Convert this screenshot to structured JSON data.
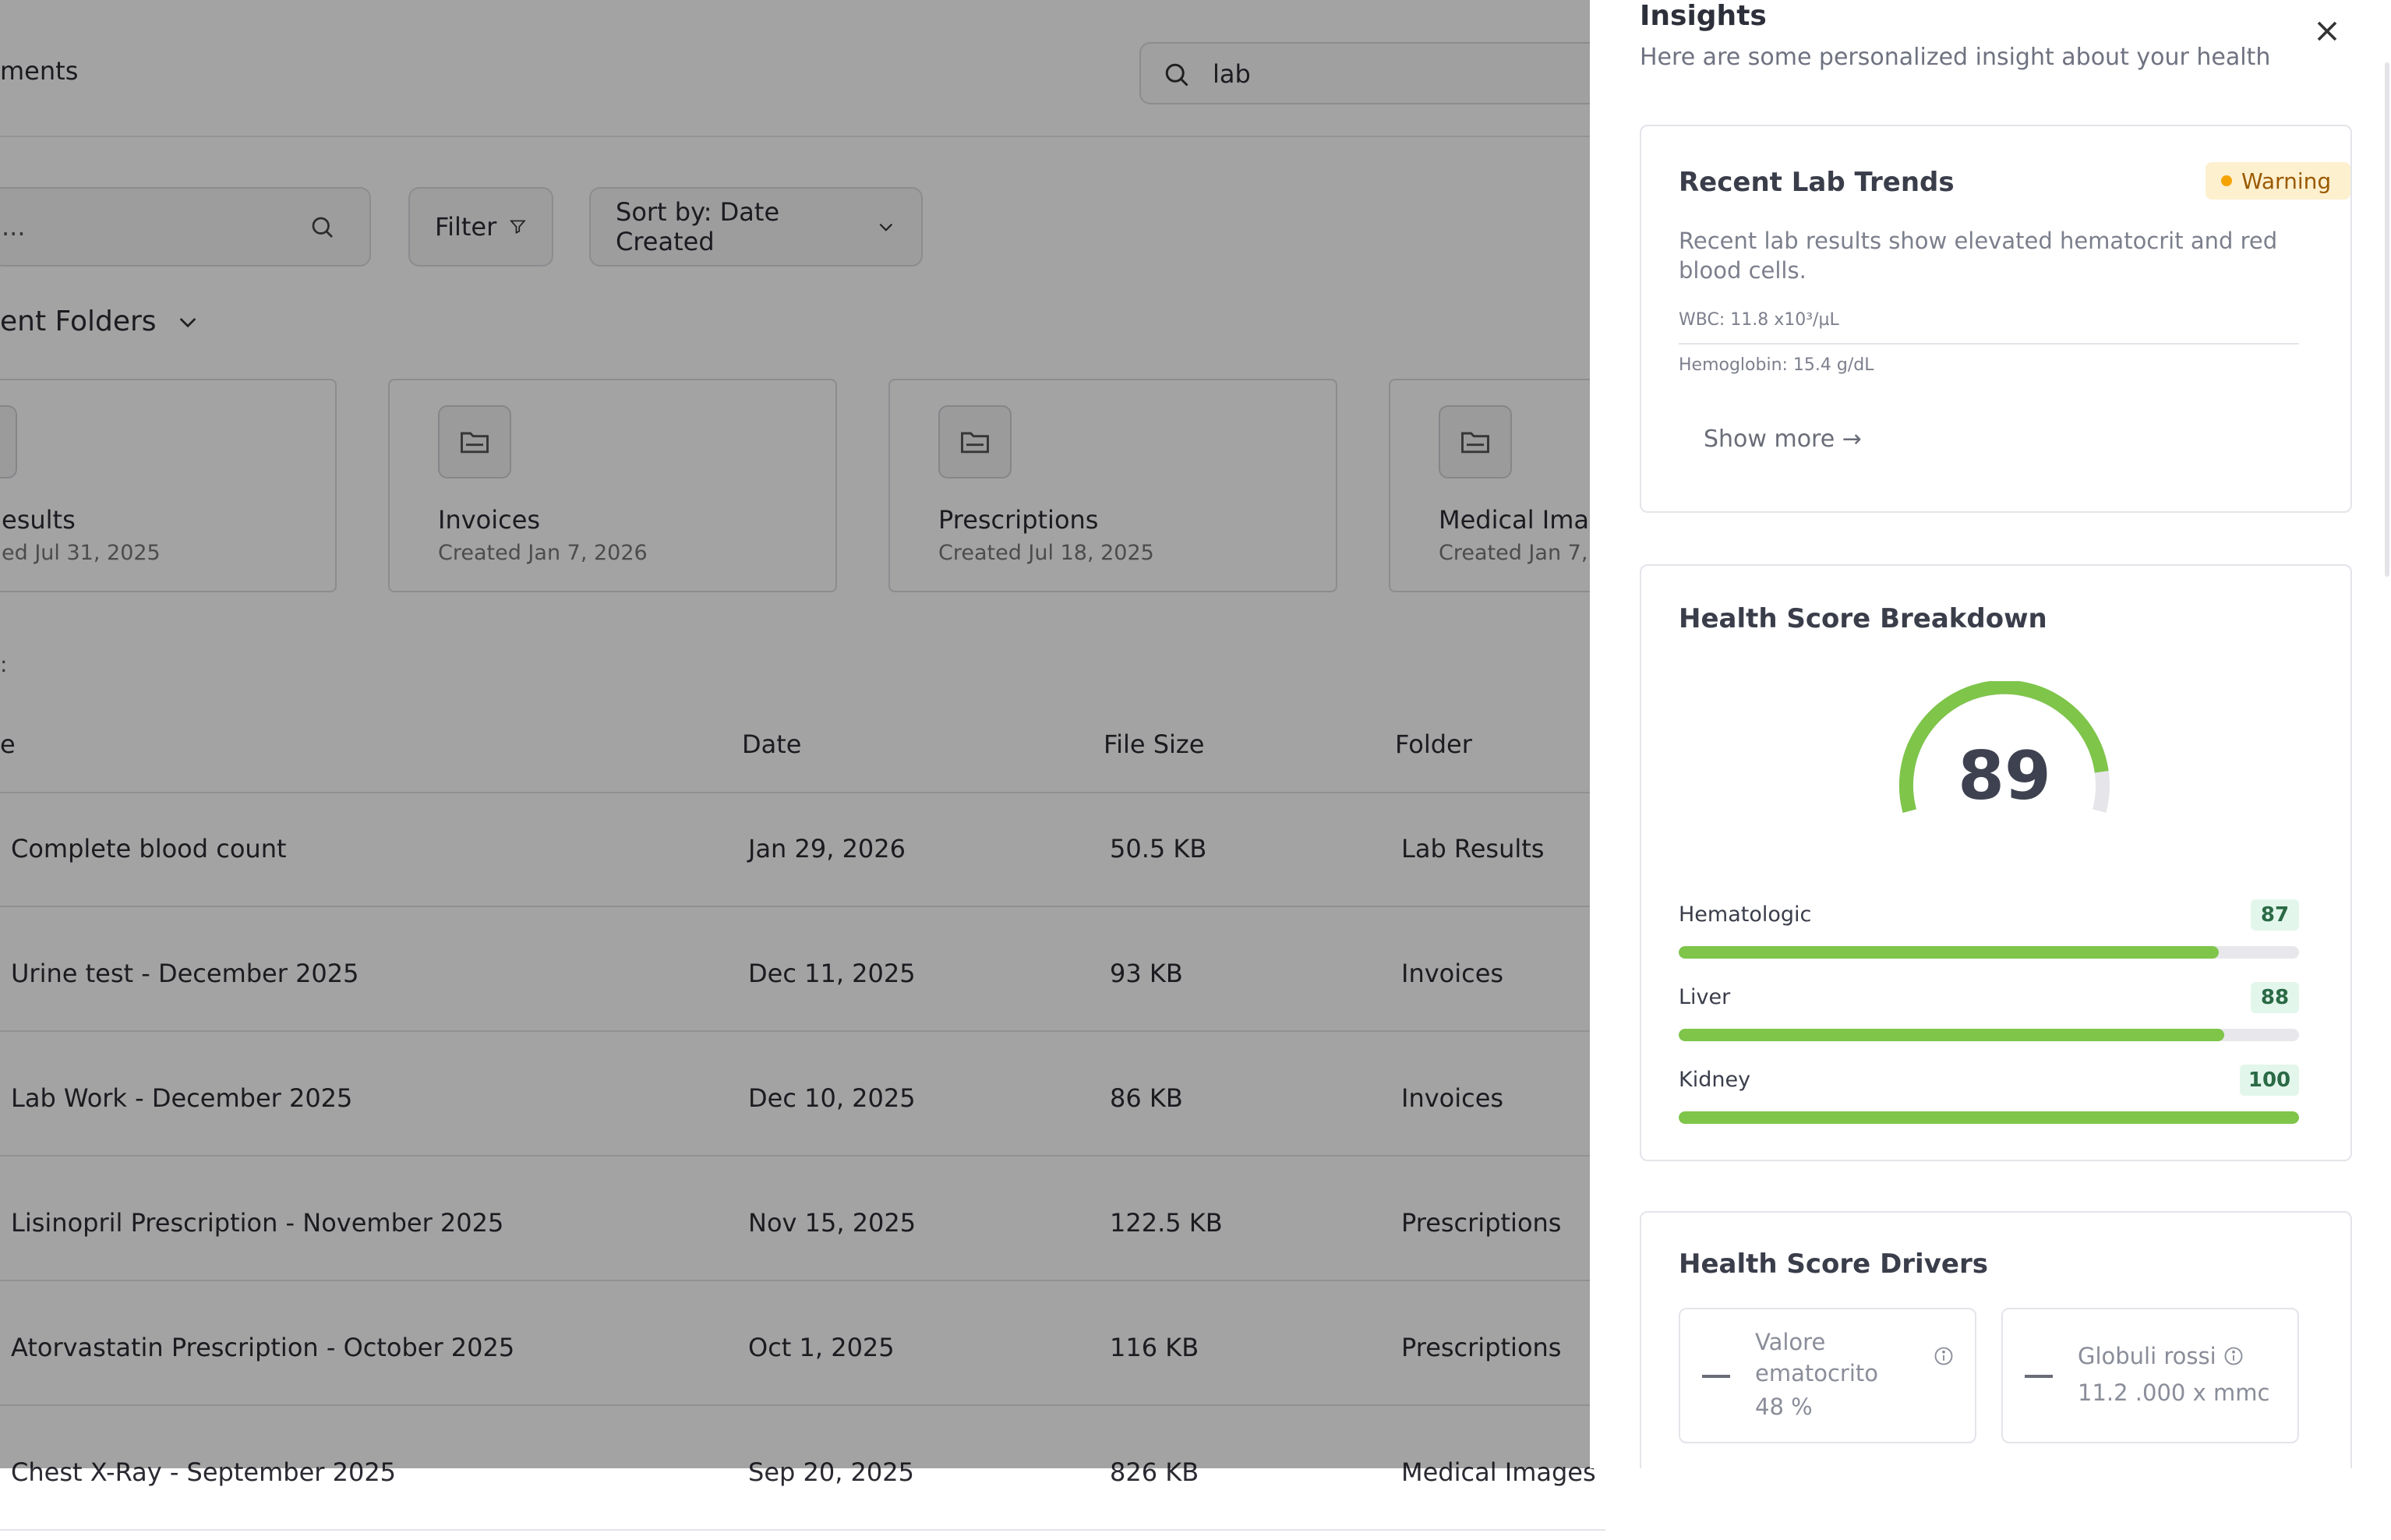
{
  "background": {
    "page_title_fragment": "ments",
    "global_search": {
      "value": "lab"
    },
    "doc_search": {
      "placeholder": "..."
    },
    "filter_label": "Filter",
    "sort_label": "Sort by: Date Created",
    "recent_folders_label": "ent Folders",
    "folders": [
      {
        "name": "esults",
        "created": "ed Jul 31, 2025"
      },
      {
        "name": "Invoices",
        "created": "Created Jan 7, 2026"
      },
      {
        "name": "Prescriptions",
        "created": "Created Jul 18, 2025"
      },
      {
        "name": "Medical Imag",
        "created": "Created Jan 7, 2"
      }
    ],
    "section_fragment": ":",
    "table": {
      "columns": [
        "e",
        "Date",
        "File Size",
        "Folder"
      ],
      "rows": [
        {
          "name": "Complete blood count",
          "date": "Jan 29, 2026",
          "size": "50.5 KB",
          "folder": "Lab Results"
        },
        {
          "name": "Urine test - December 2025",
          "date": "Dec 11, 2025",
          "size": "93 KB",
          "folder": "Invoices"
        },
        {
          "name": "Lab Work - December 2025",
          "date": "Dec 10, 2025",
          "size": "86 KB",
          "folder": "Invoices"
        },
        {
          "name": "Lisinopril Prescription - November 2025",
          "date": "Nov 15, 2025",
          "size": "122.5 KB",
          "folder": "Prescriptions"
        },
        {
          "name": "Atorvastatin Prescription - October 2025",
          "date": "Oct 1, 2025",
          "size": "116 KB",
          "folder": "Prescriptions"
        },
        {
          "name": "Chest X-Ray - September 2025",
          "date": "Sep 20, 2025",
          "size": "826 KB",
          "folder": "Medical Images"
        }
      ]
    }
  },
  "insights": {
    "title": "Insights",
    "subtitle": "Here are some personalized insight about your health",
    "lab_trends": {
      "title": "Recent Lab Trends",
      "badge": "Warning",
      "badge_color": "#f5a300",
      "description": "Recent lab results show elevated hematocrit and red blood cells.",
      "lines": [
        "WBC: 11.8 x10³/µL",
        "Hemoglobin: 15.4 g/dL"
      ],
      "show_more": "Show more →"
    },
    "breakdown": {
      "title": "Health Score Breakdown",
      "score": "89",
      "score_value": 89,
      "accent": "#7ec54a",
      "metrics": [
        {
          "label": "Hematologic",
          "value": "87",
          "pct": 87
        },
        {
          "label": "Liver",
          "value": "88",
          "pct": 88
        },
        {
          "label": "Kidney",
          "value": "100",
          "pct": 100
        }
      ]
    },
    "drivers": {
      "title": "Health Score Drivers",
      "items": [
        {
          "label_line1": "Valore",
          "label_line2": "ematocrito",
          "value": "48 %"
        },
        {
          "label_line1": "Globuli rossi",
          "value": "11.2 .000 x mmc"
        }
      ]
    }
  }
}
